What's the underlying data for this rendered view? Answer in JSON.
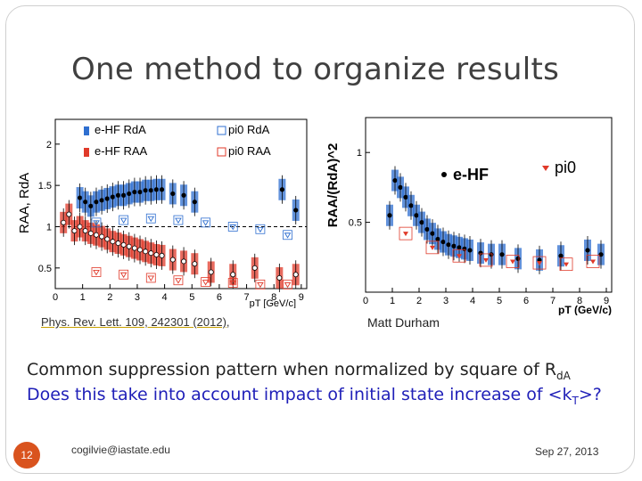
{
  "slide": {
    "title": "One method to organize results",
    "number": "12",
    "email": "cogilvie@iastate.edu",
    "date": "Sep 27, 2013"
  },
  "figures": {
    "left_reference": "Phys. Rev. Lett. 109, 242301 (2012)",
    "left_reference_suffix": ",",
    "right_credit": "Matt Durham"
  },
  "text": {
    "line1_prefix": "Common suppression pattern when normalized by square of R",
    "line1_suffix": "dA",
    "line2_prefix": "Does this take into account impact of initial state increase of <k",
    "line2_sub": "T",
    "line2_suffix": ">?"
  },
  "colors": {
    "blue": "#2f6fd0",
    "blue_light": "#5a8ee6",
    "red": "#e03a2a",
    "red_light": "#f08070",
    "accent": "#d9531e",
    "text_blue": "#1f1fb8"
  },
  "chart_data": [
    {
      "type": "scatter",
      "id": "left",
      "ylabel": "RAA, RdA",
      "xlabel": "pT [GeV/c]",
      "xlim": [
        0,
        9.2
      ],
      "ylim": [
        0.25,
        2.3
      ],
      "xticks": [
        0,
        1,
        2,
        3,
        4,
        5,
        6,
        7,
        8,
        9
      ],
      "yticks": [
        0.5,
        1,
        1.5,
        2
      ],
      "reference_line": 1,
      "legend": [
        {
          "label": "e-HF RdA",
          "color": "#2f6fd0"
        },
        {
          "label": "e-HF RAA",
          "color": "#e03a2a"
        },
        {
          "label": "pi0 RdA",
          "color": "#2f6fd0"
        },
        {
          "label": "pi0 RAA",
          "color": "#e03a2a"
        }
      ],
      "series": [
        {
          "name": "e-HF RdA",
          "color": "#2f6fd0",
          "style": "band-dot",
          "x": [
            0.9,
            1.1,
            1.3,
            1.5,
            1.7,
            1.9,
            2.1,
            2.3,
            2.5,
            2.7,
            2.9,
            3.1,
            3.3,
            3.5,
            3.7,
            3.9,
            4.3,
            4.7,
            5.1,
            8.3,
            8.8
          ],
          "y": [
            1.35,
            1.3,
            1.25,
            1.3,
            1.32,
            1.34,
            1.36,
            1.38,
            1.38,
            1.4,
            1.42,
            1.42,
            1.44,
            1.44,
            1.45,
            1.45,
            1.4,
            1.38,
            1.3,
            1.45,
            1.2
          ]
        },
        {
          "name": "e-HF RAA",
          "color": "#e03a2a",
          "style": "band-circle",
          "x": [
            0.3,
            0.5,
            0.7,
            0.9,
            1.1,
            1.3,
            1.5,
            1.7,
            1.9,
            2.1,
            2.3,
            2.5,
            2.7,
            2.9,
            3.1,
            3.3,
            3.5,
            3.7,
            3.9,
            4.3,
            4.7,
            5.1,
            5.7,
            6.5,
            7.3,
            8.2,
            8.8
          ],
          "y": [
            1.05,
            1.15,
            0.95,
            1.0,
            0.95,
            0.92,
            0.9,
            0.88,
            0.85,
            0.82,
            0.8,
            0.78,
            0.76,
            0.74,
            0.72,
            0.7,
            0.68,
            0.66,
            0.65,
            0.6,
            0.58,
            0.55,
            0.45,
            0.42,
            0.5,
            0.38,
            0.42
          ]
        },
        {
          "name": "pi0 RdA",
          "color": "#2f6fd0",
          "style": "open-triangle",
          "x": [
            1.5,
            2.5,
            3.5,
            4.5,
            5.5,
            6.5,
            7.5,
            8.5
          ],
          "y": [
            1.05,
            1.08,
            1.1,
            1.08,
            1.05,
            1.0,
            0.97,
            0.9
          ]
        },
        {
          "name": "pi0 RAA",
          "color": "#e03a2a",
          "style": "open-triangle",
          "x": [
            1.5,
            2.5,
            3.5,
            4.5,
            5.5,
            6.5,
            7.5,
            8.5
          ],
          "y": [
            0.45,
            0.42,
            0.38,
            0.35,
            0.33,
            0.32,
            0.3,
            0.3
          ]
        }
      ]
    },
    {
      "type": "scatter",
      "id": "right",
      "ylabel": "RAA/(RdA)^2",
      "xlabel": "pT (GeV/c)",
      "xlim": [
        0,
        9.2
      ],
      "ylim": [
        0,
        1.25
      ],
      "xticks": [
        0,
        1,
        2,
        3,
        4,
        5,
        6,
        7,
        8,
        9
      ],
      "yticks": [
        0.5,
        1
      ],
      "legend": [
        {
          "label": "e-HF",
          "color": "#2f6fd0"
        },
        {
          "label": "pi0",
          "color": "#e03a2a"
        }
      ],
      "series": [
        {
          "name": "e-HF",
          "color": "#2f6fd0",
          "style": "band-dot",
          "x": [
            0.9,
            1.1,
            1.3,
            1.5,
            1.7,
            1.9,
            2.1,
            2.3,
            2.5,
            2.7,
            2.9,
            3.1,
            3.3,
            3.5,
            3.7,
            3.9,
            4.3,
            4.7,
            5.1,
            5.7,
            6.5,
            7.3,
            8.3,
            8.8
          ],
          "y": [
            0.55,
            0.8,
            0.75,
            0.68,
            0.62,
            0.55,
            0.5,
            0.45,
            0.42,
            0.38,
            0.36,
            0.34,
            0.33,
            0.32,
            0.31,
            0.3,
            0.28,
            0.27,
            0.27,
            0.24,
            0.23,
            0.26,
            0.3,
            0.27
          ]
        },
        {
          "name": "pi0",
          "color": "#e03a2a",
          "style": "open-square",
          "x": [
            1.5,
            2.5,
            3.5,
            4.5,
            5.5,
            6.5,
            7.5,
            8.5
          ],
          "y": [
            0.42,
            0.32,
            0.26,
            0.23,
            0.22,
            0.21,
            0.2,
            0.22
          ]
        }
      ]
    }
  ]
}
